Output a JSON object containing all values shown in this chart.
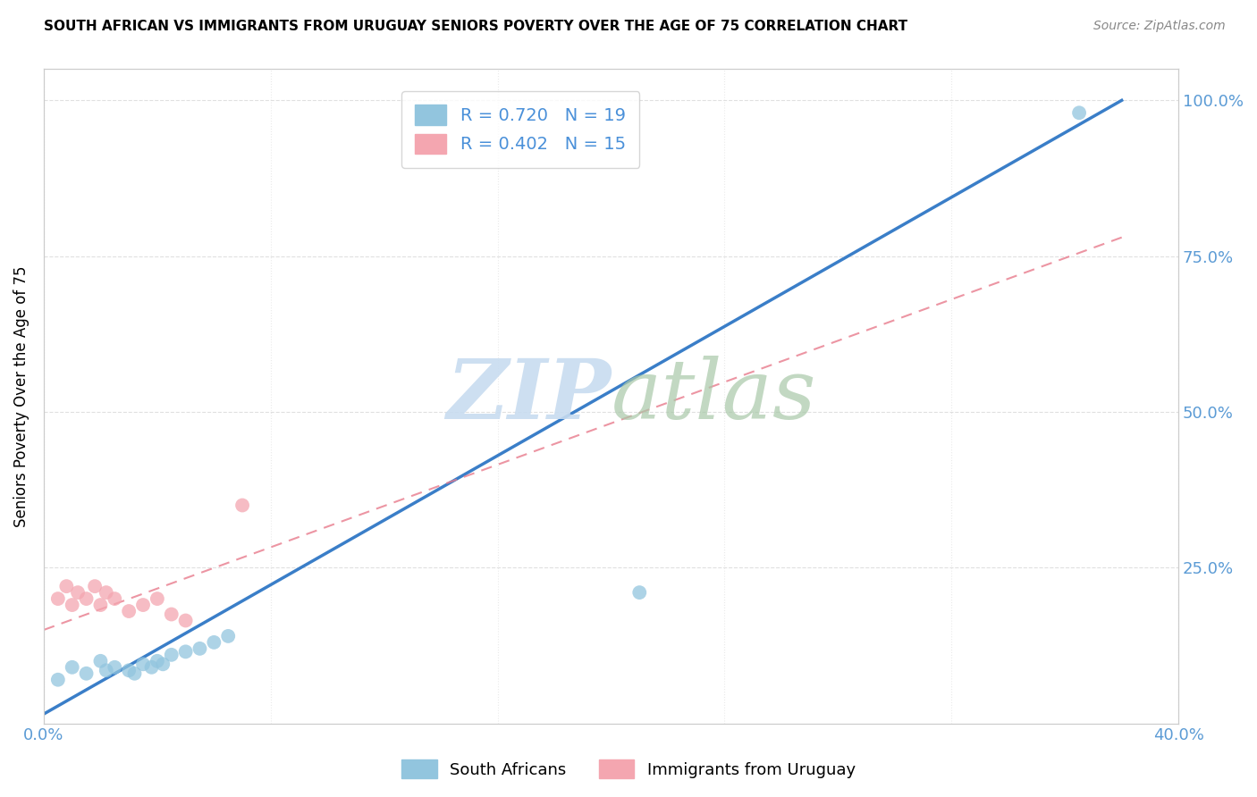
{
  "title": "SOUTH AFRICAN VS IMMIGRANTS FROM URUGUAY SENIORS POVERTY OVER THE AGE OF 75 CORRELATION CHART",
  "source": "Source: ZipAtlas.com",
  "ylabel": "Seniors Poverty Over the Age of 75",
  "xlim": [
    0.0,
    0.4
  ],
  "ylim": [
    0.0,
    1.05
  ],
  "blue_R": 0.72,
  "blue_N": 19,
  "pink_R": 0.402,
  "pink_N": 15,
  "blue_color": "#92C5DE",
  "pink_color": "#F4A6B0",
  "blue_line_color": "#3A7EC8",
  "pink_line_color": "#E87B8C",
  "watermark_zip_color": "#C8DCF0",
  "watermark_atlas_color": "#A8C8A8",
  "legend_text_color": "#4A90D9",
  "axis_tick_color": "#5B9BD5",
  "grid_color": "#DDDDDD",
  "blue_scatter_x": [
    0.005,
    0.01,
    0.015,
    0.02,
    0.022,
    0.025,
    0.03,
    0.032,
    0.035,
    0.038,
    0.04,
    0.042,
    0.045,
    0.05,
    0.055,
    0.06,
    0.065,
    0.21,
    0.365
  ],
  "blue_scatter_y": [
    0.07,
    0.09,
    0.08,
    0.1,
    0.085,
    0.09,
    0.085,
    0.08,
    0.095,
    0.09,
    0.1,
    0.095,
    0.11,
    0.115,
    0.12,
    0.13,
    0.14,
    0.21,
    0.98
  ],
  "pink_scatter_x": [
    0.005,
    0.008,
    0.01,
    0.012,
    0.015,
    0.018,
    0.02,
    0.022,
    0.025,
    0.03,
    0.035,
    0.04,
    0.045,
    0.05,
    0.07
  ],
  "pink_scatter_y": [
    0.2,
    0.22,
    0.19,
    0.21,
    0.2,
    0.22,
    0.19,
    0.21,
    0.2,
    0.18,
    0.19,
    0.2,
    0.175,
    0.165,
    0.35
  ],
  "blue_line_x": [
    0.0,
    0.38
  ],
  "blue_line_y": [
    0.015,
    1.0
  ],
  "pink_line_x": [
    0.0,
    0.38
  ],
  "pink_line_y": [
    0.15,
    0.78
  ]
}
